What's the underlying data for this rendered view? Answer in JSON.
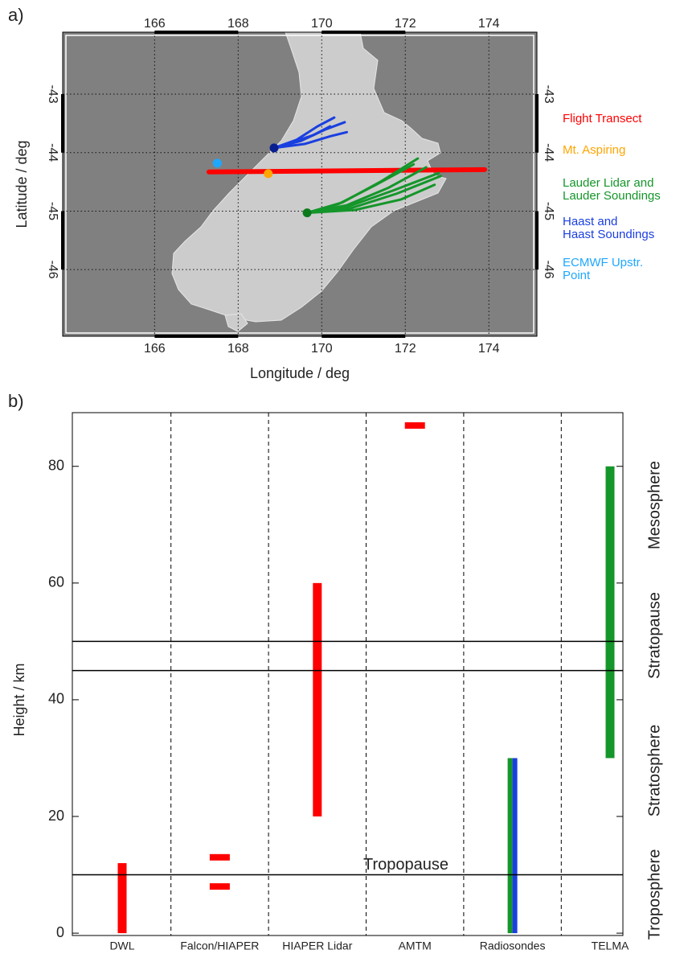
{
  "chart_data": [
    {
      "type": "map",
      "label": "a)",
      "xlabel": "Longitude / deg",
      "ylabel": "Latitude / deg",
      "xlim": [
        163.8,
        175.15
      ],
      "ylim": [
        -47.14,
        -41.94
      ],
      "xticks": [
        166,
        168,
        170,
        172,
        174
      ],
      "yticks": [
        -43,
        -44,
        -45,
        -46
      ],
      "grid": true,
      "series": [
        {
          "name": "Flight Transect",
          "color": "#ff0000",
          "x": [
            167.3,
            173.9
          ],
          "y": [
            -44.33,
            -44.29
          ]
        },
        {
          "name": "Mt. Aspiring",
          "color": "#ffa500",
          "x": [
            168.72
          ],
          "y": [
            -44.36
          ]
        },
        {
          "name": "Lauder Lidar and\nLauder Soundings",
          "color": "#14962a",
          "x": [
            169.65
          ],
          "y": [
            -45.03
          ],
          "tracks": [
            {
              "x": [
                169.65,
                170.5,
                171.4,
                172.3
              ],
              "y": [
                -45.03,
                -44.85,
                -44.5,
                -44.1
              ]
            },
            {
              "x": [
                169.65,
                170.6,
                171.6,
                172.5
              ],
              "y": [
                -45.03,
                -44.9,
                -44.6,
                -44.25
              ]
            },
            {
              "x": [
                169.65,
                170.7,
                171.8,
                172.85
              ],
              "y": [
                -45.03,
                -44.95,
                -44.7,
                -44.4
              ]
            },
            {
              "x": [
                169.65,
                170.8,
                171.9,
                172.7
              ],
              "y": [
                -45.03,
                -44.98,
                -44.8,
                -44.55
              ]
            },
            {
              "x": [
                169.65,
                170.6,
                171.7,
                172.8
              ],
              "y": [
                -45.03,
                -44.93,
                -44.65,
                -44.35
              ]
            },
            {
              "x": [
                169.65,
                170.4,
                171.3,
                172.2
              ],
              "y": [
                -45.03,
                -44.88,
                -44.55,
                -44.2
              ]
            }
          ]
        },
        {
          "name": "Haast and\nHaast Soundings",
          "color": "#1a3fe0",
          "x": [
            168.86
          ],
          "y": [
            -43.92
          ],
          "tracks": [
            {
              "x": [
                168.86,
                169.5,
                170.1,
                170.55
              ],
              "y": [
                -43.92,
                -43.8,
                -43.6,
                -43.48
              ]
            },
            {
              "x": [
                168.86,
                169.4,
                169.9,
                170.3
              ],
              "y": [
                -43.92,
                -43.78,
                -43.55,
                -43.4
              ]
            },
            {
              "x": [
                168.86,
                169.6,
                170.2,
                170.6
              ],
              "y": [
                -43.92,
                -43.85,
                -43.72,
                -43.65
              ]
            },
            {
              "x": [
                168.86,
                169.3,
                169.8,
                170.2
              ],
              "y": [
                -43.92,
                -43.82,
                -43.7,
                -43.55
              ]
            }
          ]
        },
        {
          "name": "ECMWF Upstr.\nPoint",
          "color": "#1ea7ff",
          "x": [
            167.5
          ],
          "y": [
            -44.18
          ]
        }
      ]
    },
    {
      "type": "range",
      "label": "b)",
      "ylabel": "Height / km",
      "ylim": [
        -0.4,
        89.2
      ],
      "yticks": [
        0,
        20,
        40,
        60,
        80
      ],
      "categories": [
        "DWL",
        "Falcon/HIAPER",
        "HIAPER Lidar",
        "AMTM",
        "Radiosondes",
        "TELMA"
      ],
      "spans": [
        [
          {
            "low": 0,
            "high": 12,
            "color": "#ff0000"
          }
        ],
        [],
        [
          {
            "low": 20,
            "high": 60,
            "color": "#ff0000"
          }
        ],
        [],
        [
          {
            "low": 0,
            "high": 30,
            "color": "#14962a"
          },
          {
            "low": 0,
            "high": 30,
            "color": "#1a3fe0"
          }
        ],
        [
          {
            "low": 30,
            "high": 80,
            "color": "#14962a"
          }
        ]
      ],
      "levels": [
        [],
        [
          {
            "value": 13,
            "color": "#ff0000"
          },
          {
            "value": 8,
            "color": "#ff0000"
          }
        ],
        [],
        [
          {
            "value": 87,
            "color": "#ff0000"
          }
        ],
        [],
        []
      ],
      "hlines": [
        {
          "value": 10,
          "label": "Tropopause"
        },
        {
          "value": 45
        },
        {
          "value": 50
        }
      ],
      "regions": [
        "Troposphere",
        "Stratosphere",
        "Stratopause",
        "Mesosphere"
      ]
    }
  ]
}
